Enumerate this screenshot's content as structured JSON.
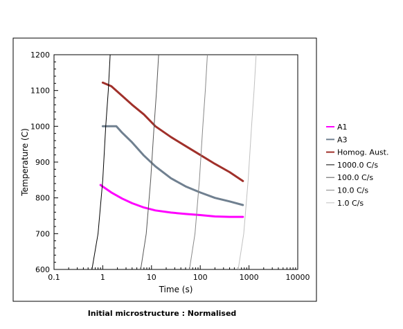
{
  "chart_data": {
    "type": "line",
    "title": "",
    "caption": "Initial microstructure : Normalised",
    "xlabel": "Time (s)",
    "ylabel": "Temperature (C)",
    "xscale": "log",
    "xlim": [
      0.1,
      10000
    ],
    "ylim": [
      600,
      1200
    ],
    "x_ticks": [
      {
        "value": 0.1,
        "label": "0.1"
      },
      {
        "value": 1,
        "label": "1"
      },
      {
        "value": 10,
        "label": "10"
      },
      {
        "value": 100,
        "label": "100"
      },
      {
        "value": 1000,
        "label": "1000"
      },
      {
        "value": 10000,
        "label": "10000"
      }
    ],
    "y_ticks": [
      600,
      700,
      800,
      900,
      1000,
      1100,
      1200
    ],
    "grid": false,
    "legend_position": "right",
    "series": [
      {
        "name": "A1",
        "color": "#ff00ff",
        "width": 3,
        "points": [
          [
            0.9,
            836
          ],
          [
            1.5,
            815
          ],
          [
            2.5,
            798
          ],
          [
            4,
            785
          ],
          [
            7,
            773
          ],
          [
            12,
            765
          ],
          [
            25,
            759
          ],
          [
            50,
            755
          ],
          [
            100,
            752
          ],
          [
            200,
            748
          ],
          [
            400,
            747
          ],
          [
            750,
            747
          ]
        ]
      },
      {
        "name": "A3",
        "color": "#708090",
        "width": 3,
        "points": [
          [
            1.0,
            1000
          ],
          [
            1.9,
            1000
          ],
          [
            2.5,
            982
          ],
          [
            4,
            955
          ],
          [
            7,
            918
          ],
          [
            12,
            888
          ],
          [
            25,
            855
          ],
          [
            50,
            832
          ],
          [
            100,
            815
          ],
          [
            200,
            800
          ],
          [
            400,
            790
          ],
          [
            750,
            780
          ]
        ]
      },
      {
        "name": "Homog. Aust.",
        "color": "#a0302a",
        "width": 3,
        "points": [
          [
            1.0,
            1122
          ],
          [
            1.5,
            1112
          ],
          [
            2.5,
            1085
          ],
          [
            4,
            1060
          ],
          [
            7,
            1033
          ],
          [
            12,
            1000
          ],
          [
            25,
            970
          ],
          [
            50,
            945
          ],
          [
            100,
            920
          ],
          [
            200,
            895
          ],
          [
            400,
            872
          ],
          [
            750,
            847
          ]
        ]
      },
      {
        "name": "1000.0 C/s",
        "color": "#000000",
        "width": 1,
        "points": [
          [
            0.6,
            600
          ],
          [
            0.8,
            700
          ],
          [
            1.0,
            850
          ],
          [
            1.15,
            1000
          ],
          [
            1.3,
            1100
          ],
          [
            1.42,
            1200
          ]
        ]
      },
      {
        "name": "100.0 C/s",
        "color": "#555555",
        "width": 1,
        "points": [
          [
            6.0,
            600
          ],
          [
            7.8,
            700
          ],
          [
            9.6,
            850
          ],
          [
            11.3,
            1000
          ],
          [
            12.7,
            1100
          ],
          [
            14.0,
            1200
          ]
        ]
      },
      {
        "name": "10.0 C/s",
        "color": "#888888",
        "width": 1,
        "points": [
          [
            60,
            600
          ],
          [
            78,
            700
          ],
          [
            96,
            850
          ],
          [
            113,
            1000
          ],
          [
            127,
            1100
          ],
          [
            140,
            1200
          ]
        ]
      },
      {
        "name": "1.0 C/s",
        "color": "#c0c0c0",
        "width": 1,
        "points": [
          [
            600,
            600
          ],
          [
            780,
            700
          ],
          [
            960,
            850
          ],
          [
            1130,
            1000
          ],
          [
            1270,
            1100
          ],
          [
            1400,
            1200
          ]
        ]
      }
    ]
  }
}
